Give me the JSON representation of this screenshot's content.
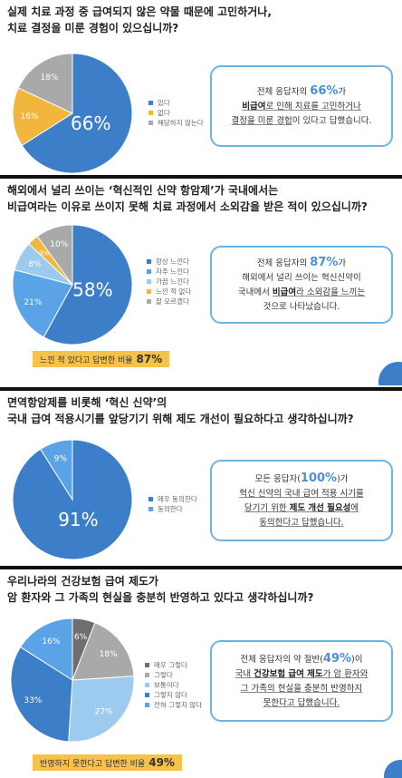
{
  "sections": [
    {
      "q1": "실제 치료 과정 중 급여되지 않은 약물 때문에 고민하거나,",
      "q2": "치료 결정을 미룬 경험이 있으십니까?",
      "callout": {
        "pre": "전체 응답자의 ",
        "pct": "66%",
        "post": "가",
        "l2a": "비급여",
        "l2b": "로 인해 치료를 고민하거나",
        "l3a": "결정을 미룬 경험",
        "l3b": "이 있다고 답했습니다."
      },
      "note": null
    },
    {
      "q1": "해외에서 널리 쓰이는 ‘혁신적인 신약 항암제’가 국내에서는",
      "q2": "비급여라는 이유로 쓰이지 못해 치료 과정에서 소외감을 받은 적이 있으십니까?",
      "callout": {
        "pre": "전체 응답자의 ",
        "pct": "87%",
        "post": "가",
        "l2": "해외에서 널리 쓰이는 혁신신약이",
        "l3a": "국내에서 ",
        "l3b": "비급여",
        "l3c": "라 소외감을 느끼는",
        "l4": "것으로 나타났습니다."
      },
      "note": {
        "text": "느낀 적 있다고 답변한 비율",
        "value": "87%"
      }
    },
    {
      "q1": "면역항암제를 비롯해 ‘혁신 신약’의",
      "q2": "국내 급여 적용시기를 앞당기기 위해 제도 개선이 필요하다고 생각하십니까?",
      "callout": {
        "pre": "모든 응답자(",
        "pct": "100%",
        "post": ")가",
        "l2": "혁신 신약의 국내 급여 적용 시기를",
        "l3a": "당기기 위한 ",
        "l3b": "제도 개선 필요성",
        "l3c": "에",
        "l4": "동의한다고 답했습니다."
      },
      "note": null
    },
    {
      "q1": "우리나라의 건강보험 급여 제도가",
      "q2": "암 환자와 그 가족의 현실을 충분히 반영하고 있다고 생각하십니까?",
      "callout": {
        "pre": "전체 응답자의 약 절반(",
        "pct": "49%",
        "post": ")이",
        "l2a": "국내 ",
        "l2b": "건강보험 급여 제도",
        "l2c": "가 암 환자와",
        "l3": "그 가족의 현실을 충분히 반영하지",
        "l4": "못한다고 답했습니다."
      },
      "note": {
        "text": "반영하지 못한다고 답변한 비율",
        "value": "49%"
      }
    }
  ],
  "chart_data": [
    {
      "type": "pie",
      "title": "실제 치료 과정 중 급여되지 않은 약물 때문에 고민하거나, 치료 결정을 미룬 경험이 있으십니까?",
      "categories": [
        "있다",
        "없다",
        "해당하지 않는다"
      ],
      "values": [
        66,
        16,
        18
      ],
      "labels": [
        "66%",
        "16%",
        "18%"
      ],
      "colors": [
        "#3d7ec9",
        "#f3b63c",
        "#a9a9a9"
      ],
      "legend": "right"
    },
    {
      "type": "pie",
      "title": "해외에서 널리 쓰이는 ‘혁신적인 신약 항암제’가 국내에서는 비급여라는 이유로 쓰이지 못해 치료 과정에서 소외감을 받은 적이 있으십니까?",
      "categories": [
        "항상 느낀다",
        "자주 느낀다",
        "가끔 느낀다",
        "느낀 적 없다",
        "잘 모르겠다"
      ],
      "values": [
        58,
        21,
        8,
        3,
        10
      ],
      "labels": [
        "58%",
        "21%",
        "8%",
        "3%",
        "10%"
      ],
      "colors": [
        "#3d7ec9",
        "#5aa3e6",
        "#9ccbef",
        "#f3b63c",
        "#a9a9a9"
      ],
      "legend": "right"
    },
    {
      "type": "pie",
      "title": "면역항암제를 비롯해 ‘혁신 신약’의 국내 급여 적용시기를 앞당기기 위해 제도 개선이 필요하다고 생각하십니까?",
      "categories": [
        "매우 동의한다",
        "동의한다"
      ],
      "values": [
        91,
        9
      ],
      "labels": [
        "91%",
        "9%"
      ],
      "colors": [
        "#3d7ec9",
        "#5aa3e6"
      ],
      "legend": "right"
    },
    {
      "type": "pie",
      "title": "우리나라의 건강보험 급여 제도가 암 환자와 그 가족의 현실을 충분히 반영하고 있다고 생각하십니까?",
      "categories": [
        "매우 그렇다",
        "그렇다",
        "보통이다",
        "그렇지 않다",
        "전혀 그렇지 않다"
      ],
      "values": [
        6,
        18,
        27,
        33,
        16
      ],
      "labels": [
        "6%",
        "18%",
        "27%",
        "33%",
        "16%"
      ],
      "colors": [
        "#6e6e6e",
        "#a9a9a9",
        "#9ccbef",
        "#3d7ec9",
        "#5aa3e6"
      ],
      "legend": "right"
    }
  ]
}
